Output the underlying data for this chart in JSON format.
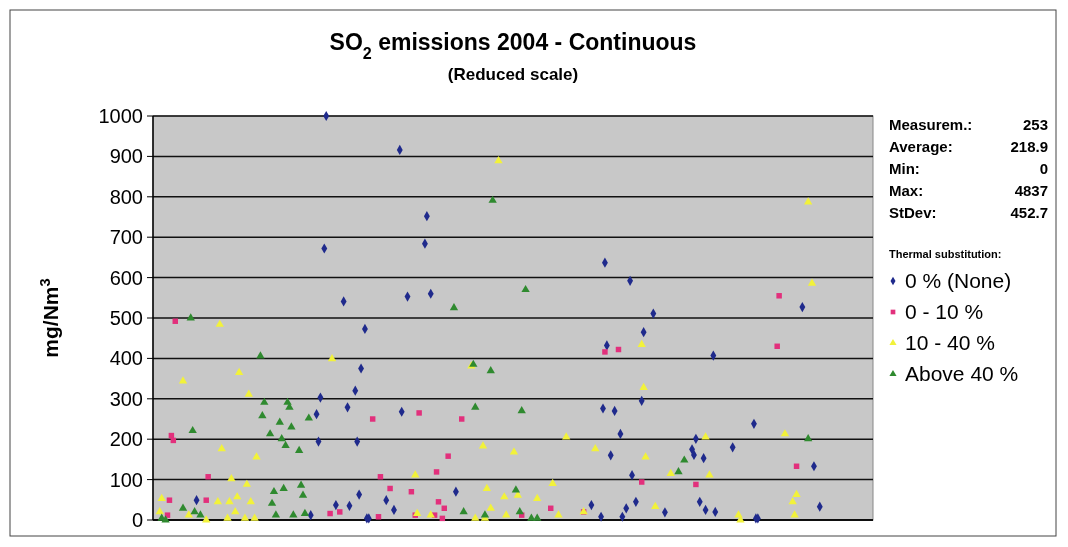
{
  "chart_data": {
    "type": "scatter",
    "title": "SO$_{2}$ emissions 2004 - Continuous",
    "subtitle": "(Reduced scale)",
    "ylabel": "mg/Nm$^{3}$",
    "legend_title": "Thermal substitution:",
    "legend": "right",
    "grid": "y",
    "tick_labels": "y",
    "ylim": [
      0,
      1000
    ],
    "yticks": [
      0,
      100,
      200,
      300,
      400,
      500,
      600,
      700,
      800,
      900,
      1000
    ],
    "annotations": [
      "Measurem.: 253",
      "Average: 218.9",
      "Min: 0",
      "Max: 4837",
      "StDev: 452.7"
    ],
    "categories": [
      null,
      null,
      null,
      null,
      null,
      null,
      null,
      null,
      null,
      null,
      null,
      null,
      null,
      null,
      null,
      null,
      null,
      null,
      null,
      null,
      null,
      null,
      null,
      null,
      null,
      null,
      null,
      null,
      null,
      null,
      null,
      null,
      null,
      null,
      null,
      null,
      null,
      null,
      null,
      null,
      null,
      null,
      null,
      null,
      null,
      null,
      null,
      null,
      null,
      null,
      null,
      null,
      null,
      null,
      null,
      null,
      null,
      null,
      null,
      null,
      null,
      null,
      null,
      null,
      null,
      null,
      null,
      null,
      null,
      null,
      null,
      null,
      null,
      null,
      null,
      null,
      null,
      null,
      null,
      null,
      null,
      null,
      null,
      null,
      null,
      null,
      null,
      null,
      null,
      null,
      null,
      null,
      null,
      null,
      null,
      null,
      null,
      null,
      null,
      null,
      null,
      null,
      null,
      null,
      null,
      null,
      null,
      null,
      null,
      null,
      null,
      null,
      null,
      null,
      null,
      null,
      null,
      null,
      null,
      null,
      null,
      null,
      null,
      null,
      null,
      null,
      null,
      null,
      null,
      null,
      null,
      null,
      null,
      null,
      null,
      null,
      null,
      null,
      null,
      null,
      null,
      null,
      null,
      null,
      null,
      null,
      null,
      null,
      null,
      null,
      null,
      null,
      null,
      null,
      null,
      null,
      null,
      null,
      null,
      null,
      null,
      null,
      null,
      null,
      null,
      null,
      null,
      null,
      null,
      null,
      null,
      null,
      null,
      null,
      null,
      null,
      null,
      null,
      null,
      null,
      null,
      null,
      null,
      null,
      null,
      null,
      null,
      null,
      null,
      null,
      null,
      null,
      null,
      null,
      null,
      null,
      null,
      null,
      null,
      null,
      null,
      null,
      null,
      null,
      null,
      null,
      null,
      null,
      null,
      null,
      null,
      null,
      null,
      null,
      null,
      null,
      null,
      null,
      null,
      null,
      null,
      null,
      null,
      null,
      null,
      null,
      null,
      null,
      null,
      null,
      null,
      null,
      null,
      null,
      null,
      null,
      null,
      null,
      null,
      null,
      null,
      null,
      null,
      null,
      null,
      null,
      null,
      null,
      null,
      null,
      null,
      null,
      null,
      null,
      null,
      null,
      null,
      null,
      null,
      null,
      null,
      null,
      null,
      null,
      null,
      null,
      null,
      null,
      null,
      null,
      null,
      null,
      null,
      null,
      null,
      null,
      null,
      null,
      null,
      null,
      null,
      null,
      null,
      null,
      null,
      null,
      null,
      null,
      null,
      null,
      null,
      null,
      null,
      null,
      null,
      null,
      null,
      null,
      null,
      null,
      null,
      null,
      null,
      null,
      null,
      null,
      null,
      null,
      null,
      null,
      null,
      null,
      null,
      null,
      null,
      null,
      null,
      null,
      null,
      null,
      null,
      null,
      null,
      null,
      null,
      null,
      null,
      null,
      null,
      null,
      null,
      null,
      null,
      null,
      null,
      null,
      null,
      null,
      null,
      null,
      null,
      null,
      null,
      null,
      null,
      null,
      null,
      null,
      null,
      null,
      null,
      null,
      null,
      null,
      null,
      null,
      null,
      null,
      null,
      null,
      null,
      null,
      null,
      null,
      null,
      null,
      null,
      null,
      null,
      null,
      null,
      null
    ],
    "series": [
      {
        "name": "0 % (None)",
        "color": "#1f2a8c",
        "marker": "diamond",
        "values": [
          null,
          null,
          null,
          null,
          null,
          null,
          null,
          null,
          null,
          null,
          null,
          null,
          null,
          null,
          null,
          null,
          null,
          null,
          null,
          null,
          null,
          null,
          49,
          null,
          null,
          null,
          null,
          null,
          null,
          null,
          null,
          null,
          null,
          null,
          null,
          null,
          null,
          null,
          null,
          null,
          null,
          null,
          null,
          null,
          null,
          null,
          null,
          null,
          null,
          null,
          null,
          null,
          null,
          null,
          null,
          null,
          null,
          null,
          null,
          null,
          null,
          null,
          null,
          null,
          null,
          null,
          null,
          null,
          null,
          null,
          null,
          null,
          null,
          null,
          null,
          null,
          null,
          null,
          null,
          null,
          null,
          12,
          null,
          null,
          262,
          194,
          303,
          null,
          672,
          1000,
          null,
          null,
          null,
          null,
          37,
          null,
          null,
          null,
          541,
          null,
          279,
          35,
          null,
          null,
          320,
          194,
          63,
          375,
          null,
          473,
          4,
          4,
          null,
          null,
          null,
          null,
          null,
          null,
          null,
          null,
          49,
          null,
          null,
          null,
          25,
          null,
          null,
          916,
          268,
          null,
          null,
          553,
          null,
          null,
          null,
          null,
          null,
          null,
          null,
          null,
          684,
          752,
          null,
          560,
          null,
          null,
          null,
          null,
          null,
          null,
          null,
          null,
          null,
          null,
          null,
          null,
          70,
          null,
          null,
          null,
          null,
          null,
          null,
          null,
          null,
          null,
          null,
          null,
          null,
          null,
          null,
          null,
          null,
          null,
          null,
          null,
          null,
          null,
          null,
          null,
          null,
          null,
          null,
          null,
          null,
          null,
          null,
          null,
          null,
          null,
          null,
          null,
          null,
          null,
          null,
          null,
          null,
          null,
          null,
          null,
          null,
          null,
          null,
          null,
          null,
          null,
          null,
          null,
          null,
          null,
          null,
          null,
          null,
          null,
          null,
          null,
          null,
          null,
          null,
          null,
          null,
          null,
          null,
          null,
          null,
          null,
          37,
          null,
          null,
          null,
          null,
          8,
          276,
          637,
          432,
          null,
          160,
          null,
          270,
          null,
          null,
          213,
          8,
          null,
          29,
          null,
          592,
          111,
          null,
          45,
          null,
          null,
          295,
          465,
          null,
          null,
          null,
          null,
          511,
          null,
          null,
          null,
          null,
          null,
          19,
          null,
          null,
          null,
          null,
          null,
          null,
          null,
          null,
          null,
          null,
          null,
          null,
          null,
          175,
          161,
          201,
          null,
          45,
          null,
          153,
          25,
          null,
          null,
          null,
          407,
          20,
          null,
          null,
          null,
          null,
          null,
          null,
          null,
          null,
          180,
          null,
          null,
          null,
          null,
          null,
          null,
          null,
          null,
          null,
          null,
          238,
          4,
          4,
          null,
          null,
          null,
          null,
          null,
          null,
          null,
          null,
          null,
          null,
          null,
          null,
          null,
          null,
          null,
          null,
          null,
          null,
          null,
          null,
          null,
          null,
          527,
          null,
          null,
          null,
          null,
          null,
          133,
          null,
          null,
          33,
          null,
          null,
          null,
          null,
          null,
          null,
          null,
          null,
          null,
          null,
          null,
          null,
          null,
          null,
          null,
          null,
          null,
          null,
          null,
          null,
          null,
          null,
          null,
          null,
          null,
          null,
          null
        ]
      },
      {
        "name": "0 - 10 %",
        "color": "#e2307c",
        "marker": "square",
        "values": [
          null,
          null,
          null,
          null,
          null,
          null,
          null,
          12,
          49,
          209,
          197,
          492,
          null,
          null,
          null,
          null,
          null,
          null,
          null,
          null,
          null,
          null,
          null,
          null,
          null,
          null,
          null,
          49,
          107,
          null,
          null,
          null,
          null,
          null,
          null,
          null,
          null,
          null,
          null,
          null,
          null,
          null,
          null,
          null,
          null,
          null,
          null,
          null,
          null,
          null,
          null,
          null,
          null,
          null,
          null,
          null,
          null,
          null,
          null,
          null,
          null,
          null,
          null,
          null,
          null,
          null,
          null,
          null,
          null,
          null,
          null,
          null,
          null,
          null,
          null,
          null,
          null,
          null,
          null,
          null,
          null,
          null,
          null,
          null,
          null,
          null,
          null,
          null,
          null,
          null,
          null,
          16,
          null,
          null,
          null,
          null,
          20,
          null,
          null,
          null,
          null,
          null,
          null,
          null,
          null,
          null,
          null,
          null,
          null,
          null,
          null,
          null,
          null,
          250,
          null,
          null,
          8,
          107,
          null,
          null,
          null,
          null,
          78,
          null,
          null,
          null,
          null,
          null,
          null,
          null,
          null,
          null,
          null,
          70,
          null,
          12,
          null,
          265,
          null,
          null,
          null,
          null,
          null,
          null,
          null,
          12,
          119,
          45,
          null,
          4,
          29,
          null,
          158,
          null,
          null,
          null,
          null,
          null,
          null,
          250,
          null,
          null,
          null,
          null,
          null,
          null,
          null,
          null,
          null,
          null,
          null,
          null,
          null,
          null,
          null,
          null,
          null,
          null,
          null,
          null,
          null,
          null,
          null,
          null,
          null,
          null,
          null,
          null,
          null,
          null,
          12,
          null,
          null,
          null,
          null,
          null,
          null,
          null,
          null,
          null,
          null,
          null,
          null,
          null,
          null,
          29,
          null,
          null,
          null,
          null,
          null,
          null,
          null,
          null,
          null,
          null,
          null,
          null,
          null,
          null,
          null,
          null,
          20,
          null,
          null,
          null,
          null,
          null,
          null,
          null,
          null,
          null,
          null,
          416,
          null,
          null,
          null,
          null,
          null,
          null,
          422,
          null,
          null,
          null,
          null,
          null,
          null,
          null,
          null,
          null,
          null,
          null,
          94,
          null,
          null,
          null,
          null,
          null,
          null,
          null,
          null,
          null,
          null,
          null,
          null,
          null,
          null,
          null,
          null,
          null,
          null,
          null,
          null,
          null,
          null,
          null,
          null,
          null,
          null,
          null,
          88,
          null,
          null,
          null,
          null,
          null,
          null,
          null,
          null,
          null,
          null,
          null,
          null,
          null,
          null,
          null,
          null,
          null,
          null,
          null,
          null,
          null,
          null,
          null,
          null,
          null,
          null,
          null,
          null,
          null,
          null,
          null,
          null,
          null,
          null,
          null,
          null,
          null,
          null,
          null,
          null,
          null,
          430,
          555,
          null,
          null,
          null,
          null,
          null,
          null,
          null,
          null,
          133,
          null,
          null,
          null,
          null,
          null,
          null,
          null,
          null,
          null,
          null,
          null,
          null,
          null,
          null,
          null,
          null,
          null,
          null,
          null,
          null,
          null,
          null,
          null,
          null,
          null,
          null,
          null,
          null,
          null,
          null,
          null,
          null,
          null,
          null,
          null,
          null,
          null,
          null,
          null
        ]
      },
      {
        "name": "10 - 40 %",
        "color": "#f2f23a",
        "marker": "triangle",
        "values": [
          null,
          null,
          null,
          20,
          53,
          null,
          null,
          null,
          null,
          null,
          null,
          null,
          null,
          null,
          null,
          344,
          null,
          null,
          12,
          null,
          null,
          null,
          null,
          null,
          null,
          null,
          null,
          0,
          null,
          null,
          null,
          null,
          null,
          45,
          484,
          176,
          null,
          null,
          4,
          45,
          102,
          null,
          20,
          57,
          365,
          null,
          null,
          4,
          88,
          311,
          45,
          null,
          4,
          156,
          null,
          null,
          null,
          null,
          null,
          null,
          null,
          null,
          null,
          null,
          null,
          null,
          null,
          null,
          null,
          null,
          null,
          null,
          null,
          null,
          null,
          null,
          null,
          null,
          null,
          null,
          null,
          null,
          null,
          null,
          null,
          null,
          null,
          null,
          null,
          null,
          null,
          null,
          399,
          null,
          null,
          null,
          null,
          null,
          null,
          null,
          null,
          null,
          null,
          null,
          null,
          null,
          null,
          null,
          null,
          null,
          null,
          null,
          null,
          null,
          null,
          null,
          null,
          null,
          null,
          null,
          null,
          null,
          null,
          null,
          null,
          null,
          null,
          null,
          null,
          null,
          null,
          null,
          null,
          null,
          null,
          111,
          16,
          null,
          null,
          null,
          null,
          null,
          null,
          12,
          null,
          null,
          null,
          null,
          null,
          null,
          null,
          null,
          null,
          null,
          null,
          null,
          null,
          null,
          null,
          null,
          null,
          null,
          null,
          null,
          381,
          null,
          4,
          null,
          null,
          null,
          183,
          4,
          78,
          null,
          29,
          null,
          null,
          null,
          889,
          null,
          null,
          57,
          12,
          null,
          null,
          null,
          168,
          null,
          61,
          null,
          null,
          null,
          null,
          null,
          null,
          null,
          null,
          null,
          53,
          null,
          null,
          null,
          null,
          null,
          null,
          null,
          90,
          null,
          null,
          12,
          null,
          null,
          null,
          205,
          null,
          null,
          null,
          null,
          null,
          null,
          null,
          null,
          20,
          null,
          null,
          null,
          null,
          null,
          176,
          null,
          null,
          null,
          null,
          null,
          null,
          null,
          null,
          null,
          null,
          null,
          null,
          null,
          null,
          null,
          null,
          null,
          null,
          null,
          null,
          null,
          null,
          null,
          434,
          328,
          156,
          null,
          null,
          null,
          null,
          33,
          null,
          null,
          null,
          null,
          null,
          null,
          null,
          115,
          null,
          null,
          null,
          null,
          null,
          null,
          null,
          null,
          null,
          null,
          null,
          null,
          null,
          null,
          null,
          null,
          null,
          205,
          null,
          111,
          null,
          null,
          null,
          null,
          null,
          null,
          null,
          null,
          null,
          null,
          null,
          null,
          null,
          null,
          12,
          0,
          null,
          null,
          null,
          null,
          null,
          null,
          null,
          null,
          null,
          null,
          null,
          null,
          null,
          null,
          null,
          null,
          null,
          null,
          null,
          null,
          null,
          null,
          213,
          null,
          null,
          null,
          45,
          12,
          63,
          null,
          null,
          null,
          null,
          null,
          787,
          null,
          586,
          null,
          null,
          null,
          null,
          null,
          null,
          null,
          null,
          null,
          null,
          null,
          null,
          null,
          null,
          null,
          null,
          null,
          null,
          null,
          null,
          null,
          null,
          null,
          null,
          null,
          null,
          null,
          null,
          null,
          null,
          null
        ]
      },
      {
        "name": "Above 40 %",
        "color": "#2f8a2f",
        "marker": "triangle",
        "values": [
          null,
          null,
          null,
          null,
          4,
          null,
          0,
          null,
          null,
          null,
          null,
          null,
          null,
          null,
          null,
          29,
          null,
          null,
          null,
          500,
          221,
          20,
          null,
          null,
          12,
          null,
          null,
          null,
          null,
          null,
          null,
          null,
          null,
          null,
          null,
          null,
          null,
          null,
          null,
          null,
          null,
          null,
          null,
          null,
          null,
          null,
          null,
          null,
          null,
          null,
          null,
          null,
          null,
          null,
          null,
          406,
          258,
          291,
          null,
          null,
          213,
          41,
          70,
          12,
          null,
          242,
          201,
          78,
          184,
          291,
          279,
          230,
          12,
          null,
          null,
          172,
          86,
          61,
          16,
          null,
          252,
          null,
          null,
          null,
          null,
          null,
          null,
          null,
          null,
          null,
          null,
          null,
          null,
          null,
          null,
          null,
          null,
          null,
          null,
          null,
          null,
          null,
          null,
          null,
          null,
          null,
          null,
          null,
          null,
          null,
          null,
          null,
          null,
          null,
          null,
          null,
          null,
          null,
          null,
          null,
          null,
          null,
          null,
          null,
          null,
          null,
          null,
          null,
          null,
          null,
          null,
          null,
          null,
          null,
          null,
          null,
          null,
          null,
          null,
          null,
          null,
          null,
          null,
          null,
          null,
          null,
          null,
          null,
          null,
          null,
          null,
          null,
          null,
          null,
          null,
          525,
          null,
          null,
          null,
          null,
          20,
          null,
          null,
          null,
          null,
          385,
          279,
          null,
          null,
          null,
          null,
          12,
          null,
          null,
          369,
          791,
          null,
          null,
          null,
          null,
          null,
          null,
          null,
          null,
          null,
          null,
          null,
          74,
          null,
          20,
          270,
          null,
          570,
          null,
          null,
          4,
          null,
          null,
          4,
          null,
          null,
          null,
          null,
          null,
          null,
          null,
          null,
          null,
          null,
          null,
          null,
          null,
          null,
          null,
          null,
          null,
          null,
          null,
          null,
          null,
          null,
          null,
          null,
          null,
          null,
          null,
          null,
          null,
          null,
          null,
          null,
          null,
          null,
          null,
          null,
          null,
          null,
          null,
          null,
          null,
          null,
          null,
          null,
          null,
          null,
          null,
          null,
          null,
          null,
          null,
          null,
          null,
          null,
          null,
          null,
          null,
          null,
          null,
          null,
          null,
          null,
          null,
          null,
          null,
          null,
          null,
          null,
          null,
          null,
          null,
          null,
          119,
          null,
          null,
          148,
          null,
          null,
          null,
          null,
          null,
          null,
          null,
          null,
          null,
          null,
          null,
          null,
          null,
          null,
          null,
          null,
          null,
          null,
          null,
          null,
          null,
          null,
          null,
          null,
          null,
          null,
          null,
          null,
          null,
          null,
          null,
          null,
          null,
          null,
          null,
          null,
          null,
          null,
          null,
          null,
          null,
          null,
          null,
          null,
          null,
          null,
          null,
          null,
          null,
          null,
          null,
          null,
          null,
          null,
          null,
          null,
          null,
          null,
          null,
          null,
          null,
          null,
          null,
          201,
          null,
          null,
          null,
          null,
          null,
          null,
          null,
          null,
          null,
          null,
          null,
          null,
          null,
          null,
          null,
          null,
          null,
          null,
          null,
          null,
          null,
          null,
          null,
          null,
          null,
          null,
          null,
          null,
          null,
          null,
          null,
          null,
          null
        ]
      }
    ]
  }
}
